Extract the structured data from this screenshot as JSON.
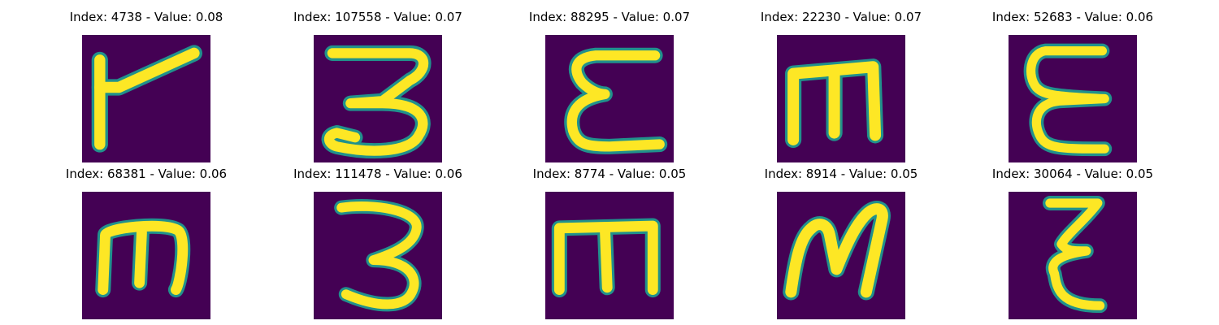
{
  "figure": {
    "panels": [
      {
        "title": "Index: 4738 - Value: 0.08",
        "glyph": "glyph-r"
      },
      {
        "title": "Index: 107558 - Value: 0.07",
        "glyph": "glyph-3"
      },
      {
        "title": "Index: 88295 - Value: 0.07",
        "glyph": "glyph-epsilon"
      },
      {
        "title": "Index: 22230 - Value: 0.07",
        "glyph": "glyph-m"
      },
      {
        "title": "Index: 52683 - Value: 0.06",
        "glyph": "glyph-epsilon"
      },
      {
        "title": "Index: 68381 - Value: 0.06",
        "glyph": "glyph-m"
      },
      {
        "title": "Index: 111478 - Value: 0.06",
        "glyph": "glyph-3"
      },
      {
        "title": "Index: 8774 - Value: 0.05",
        "glyph": "glyph-m"
      },
      {
        "title": "Index: 8914 - Value: 0.05",
        "glyph": "glyph-M"
      },
      {
        "title": "Index: 30064 - Value: 0.05",
        "glyph": "glyph-epsilon"
      }
    ],
    "colors": {
      "background": "#440154",
      "stroke": "#fde725",
      "edge": "#21918c"
    }
  }
}
